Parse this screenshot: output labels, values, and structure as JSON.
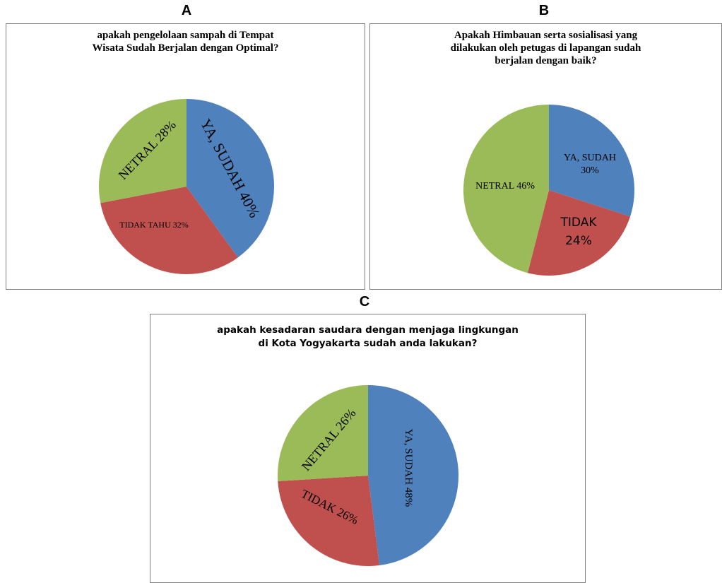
{
  "panels": {
    "a": "A",
    "b": "B",
    "c": "C"
  },
  "colors": {
    "blue": "#4f81bd",
    "red": "#c0504d",
    "green": "#9bbb59"
  },
  "chart_data": [
    {
      "type": "pie",
      "panel": "A",
      "title": "apakah pengelolaan sampah di Tempat\nWisata Sudah Berjalan dengan Optimal?",
      "slices": [
        {
          "label": "YA, SUDAH 40%",
          "value": 40,
          "color": "#4f81bd"
        },
        {
          "label": "TIDAK TAHU 32%",
          "value": 32,
          "color": "#c0504d"
        },
        {
          "label": "NETRAL 28%",
          "value": 28,
          "color": "#9bbb59"
        }
      ]
    },
    {
      "type": "pie",
      "panel": "B",
      "title": "Apakah Himbauan serta sosialisasi yang\ndilakukan oleh petugas di lapangan sudah\nberjalan dengan baik?",
      "slices": [
        {
          "label": "YA, SUDAH\n30%",
          "value": 30,
          "color": "#4f81bd"
        },
        {
          "label": "TIDAK\n24%",
          "value": 24,
          "color": "#c0504d"
        },
        {
          "label": "NETRAL 46%",
          "value": 46,
          "color": "#9bbb59"
        }
      ]
    },
    {
      "type": "pie",
      "panel": "C",
      "title": "apakah kesadaran saudara dengan menjaga lingkungan\ndi Kota Yogyakarta sudah anda lakukan?",
      "slices": [
        {
          "label": "YA, SUDAH 48%",
          "value": 48,
          "color": "#4f81bd"
        },
        {
          "label": "TIDAK 26%",
          "value": 26,
          "color": "#c0504d"
        },
        {
          "label": "NETRAL 26%",
          "value": 26,
          "color": "#9bbb59"
        }
      ]
    }
  ]
}
